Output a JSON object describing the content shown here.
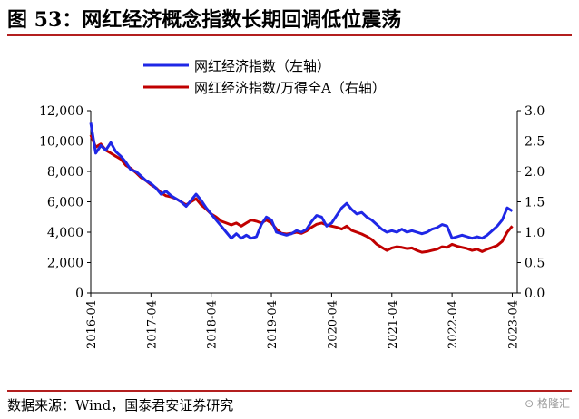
{
  "title": "图 53：网红经济概念指数长期回调低位震荡",
  "source": "数据来源：Wind，国泰君安证券研究",
  "watermark": "格隆汇",
  "colors": {
    "left_series": "#1f27e6",
    "right_series": "#c00000",
    "title_rule": "#b31f1f"
  },
  "chart_data": {
    "type": "line",
    "title": "",
    "legend_position": "top-center",
    "x_ticks": [
      "2016-04",
      "2017-04",
      "2018-04",
      "2019-04",
      "2020-04",
      "2021-04",
      "2022-04",
      "2023-04"
    ],
    "x_range": [
      "2016-04",
      "2023-05"
    ],
    "y_left": {
      "min": 0,
      "max": 12000,
      "ticks": [
        "0",
        "2,000",
        "4,000",
        "6,000",
        "8,000",
        "10,000",
        "12,000"
      ]
    },
    "y_right": {
      "min": 0,
      "max": 3.0,
      "ticks": [
        "0.0",
        "0.5",
        "1.0",
        "1.5",
        "2.0",
        "2.5",
        "3.0"
      ]
    },
    "series": [
      {
        "name": "网红经济指数（左轴）",
        "axis": "left",
        "points": [
          [
            "2016-04",
            11200
          ],
          [
            "2016-05",
            9200
          ],
          [
            "2016-06",
            9700
          ],
          [
            "2016-07",
            9400
          ],
          [
            "2016-08",
            9900
          ],
          [
            "2016-09",
            9300
          ],
          [
            "2016-10",
            9000
          ],
          [
            "2016-11",
            8600
          ],
          [
            "2016-12",
            8100
          ],
          [
            "2017-01",
            8000
          ],
          [
            "2017-02",
            7700
          ],
          [
            "2017-03",
            7400
          ],
          [
            "2017-04",
            7200
          ],
          [
            "2017-05",
            6900
          ],
          [
            "2017-06",
            6500
          ],
          [
            "2017-07",
            6700
          ],
          [
            "2017-08",
            6400
          ],
          [
            "2017-09",
            6200
          ],
          [
            "2017-10",
            6000
          ],
          [
            "2017-11",
            5700
          ],
          [
            "2017-12",
            6100
          ],
          [
            "2018-01",
            6500
          ],
          [
            "2018-02",
            6100
          ],
          [
            "2018-03",
            5600
          ],
          [
            "2018-04",
            5200
          ],
          [
            "2018-05",
            4800
          ],
          [
            "2018-06",
            4400
          ],
          [
            "2018-07",
            4000
          ],
          [
            "2018-08",
            3600
          ],
          [
            "2018-09",
            3900
          ],
          [
            "2018-10",
            3600
          ],
          [
            "2018-11",
            3800
          ],
          [
            "2018-12",
            3600
          ],
          [
            "2019-01",
            3700
          ],
          [
            "2019-02",
            4500
          ],
          [
            "2019-03",
            5000
          ],
          [
            "2019-04",
            4800
          ],
          [
            "2019-05",
            4000
          ],
          [
            "2019-06",
            3900
          ],
          [
            "2019-07",
            3800
          ],
          [
            "2019-08",
            3900
          ],
          [
            "2019-09",
            4100
          ],
          [
            "2019-10",
            4000
          ],
          [
            "2019-11",
            4200
          ],
          [
            "2019-12",
            4700
          ],
          [
            "2020-01",
            5100
          ],
          [
            "2020-02",
            5000
          ],
          [
            "2020-03",
            4400
          ],
          [
            "2020-04",
            4600
          ],
          [
            "2020-05",
            5100
          ],
          [
            "2020-06",
            5600
          ],
          [
            "2020-07",
            5900
          ],
          [
            "2020-08",
            5500
          ],
          [
            "2020-09",
            5200
          ],
          [
            "2020-10",
            5300
          ],
          [
            "2020-11",
            5000
          ],
          [
            "2020-12",
            4800
          ],
          [
            "2021-01",
            4500
          ],
          [
            "2021-02",
            4200
          ],
          [
            "2021-03",
            4000
          ],
          [
            "2021-04",
            4100
          ],
          [
            "2021-05",
            4000
          ],
          [
            "2021-06",
            4200
          ],
          [
            "2021-07",
            4000
          ],
          [
            "2021-08",
            4100
          ],
          [
            "2021-09",
            4000
          ],
          [
            "2021-10",
            3900
          ],
          [
            "2021-11",
            4000
          ],
          [
            "2021-12",
            4200
          ],
          [
            "2022-01",
            4300
          ],
          [
            "2022-02",
            4500
          ],
          [
            "2022-03",
            4400
          ],
          [
            "2022-04",
            3600
          ],
          [
            "2022-05",
            3700
          ],
          [
            "2022-06",
            3800
          ],
          [
            "2022-07",
            3700
          ],
          [
            "2022-08",
            3600
          ],
          [
            "2022-09",
            3700
          ],
          [
            "2022-10",
            3600
          ],
          [
            "2022-11",
            3800
          ],
          [
            "2022-12",
            4100
          ],
          [
            "2023-01",
            4400
          ],
          [
            "2023-02",
            4800
          ],
          [
            "2023-03",
            5600
          ],
          [
            "2023-04",
            5400
          ]
        ]
      },
      {
        "name": "网红经济指数/万得全A（右轴）",
        "axis": "right",
        "points": [
          [
            "2016-04",
            2.6
          ],
          [
            "2016-05",
            2.4
          ],
          [
            "2016-06",
            2.45
          ],
          [
            "2016-07",
            2.35
          ],
          [
            "2016-08",
            2.3
          ],
          [
            "2016-09",
            2.25
          ],
          [
            "2016-10",
            2.2
          ],
          [
            "2016-11",
            2.1
          ],
          [
            "2016-12",
            2.05
          ],
          [
            "2017-01",
            1.98
          ],
          [
            "2017-02",
            1.9
          ],
          [
            "2017-03",
            1.85
          ],
          [
            "2017-04",
            1.78
          ],
          [
            "2017-05",
            1.73
          ],
          [
            "2017-06",
            1.65
          ],
          [
            "2017-07",
            1.6
          ],
          [
            "2017-08",
            1.58
          ],
          [
            "2017-09",
            1.55
          ],
          [
            "2017-10",
            1.5
          ],
          [
            "2017-11",
            1.45
          ],
          [
            "2017-12",
            1.5
          ],
          [
            "2018-01",
            1.55
          ],
          [
            "2018-02",
            1.45
          ],
          [
            "2018-03",
            1.38
          ],
          [
            "2018-04",
            1.3
          ],
          [
            "2018-05",
            1.25
          ],
          [
            "2018-06",
            1.18
          ],
          [
            "2018-07",
            1.15
          ],
          [
            "2018-08",
            1.12
          ],
          [
            "2018-09",
            1.15
          ],
          [
            "2018-10",
            1.1
          ],
          [
            "2018-11",
            1.15
          ],
          [
            "2018-12",
            1.2
          ],
          [
            "2019-01",
            1.18
          ],
          [
            "2019-02",
            1.15
          ],
          [
            "2019-03",
            1.2
          ],
          [
            "2019-04",
            1.15
          ],
          [
            "2019-05",
            1.05
          ],
          [
            "2019-06",
            0.98
          ],
          [
            "2019-07",
            0.97
          ],
          [
            "2019-08",
            0.98
          ],
          [
            "2019-09",
            1.0
          ],
          [
            "2019-10",
            0.98
          ],
          [
            "2019-11",
            1.02
          ],
          [
            "2019-12",
            1.08
          ],
          [
            "2020-01",
            1.13
          ],
          [
            "2020-02",
            1.15
          ],
          [
            "2020-03",
            1.12
          ],
          [
            "2020-04",
            1.1
          ],
          [
            "2020-05",
            1.08
          ],
          [
            "2020-06",
            1.05
          ],
          [
            "2020-07",
            1.1
          ],
          [
            "2020-08",
            1.03
          ],
          [
            "2020-09",
            1.0
          ],
          [
            "2020-10",
            0.97
          ],
          [
            "2020-11",
            0.93
          ],
          [
            "2020-12",
            0.88
          ],
          [
            "2021-01",
            0.8
          ],
          [
            "2021-02",
            0.75
          ],
          [
            "2021-03",
            0.7
          ],
          [
            "2021-04",
            0.74
          ],
          [
            "2021-05",
            0.76
          ],
          [
            "2021-06",
            0.75
          ],
          [
            "2021-07",
            0.73
          ],
          [
            "2021-08",
            0.74
          ],
          [
            "2021-09",
            0.7
          ],
          [
            "2021-10",
            0.67
          ],
          [
            "2021-11",
            0.68
          ],
          [
            "2021-12",
            0.7
          ],
          [
            "2022-01",
            0.72
          ],
          [
            "2022-02",
            0.76
          ],
          [
            "2022-03",
            0.75
          ],
          [
            "2022-04",
            0.8
          ],
          [
            "2022-05",
            0.77
          ],
          [
            "2022-06",
            0.75
          ],
          [
            "2022-07",
            0.73
          ],
          [
            "2022-08",
            0.7
          ],
          [
            "2022-09",
            0.72
          ],
          [
            "2022-10",
            0.68
          ],
          [
            "2022-11",
            0.72
          ],
          [
            "2022-12",
            0.75
          ],
          [
            "2023-01",
            0.78
          ],
          [
            "2023-02",
            0.85
          ],
          [
            "2023-03",
            1.0
          ],
          [
            "2023-04",
            1.1
          ]
        ]
      }
    ]
  }
}
